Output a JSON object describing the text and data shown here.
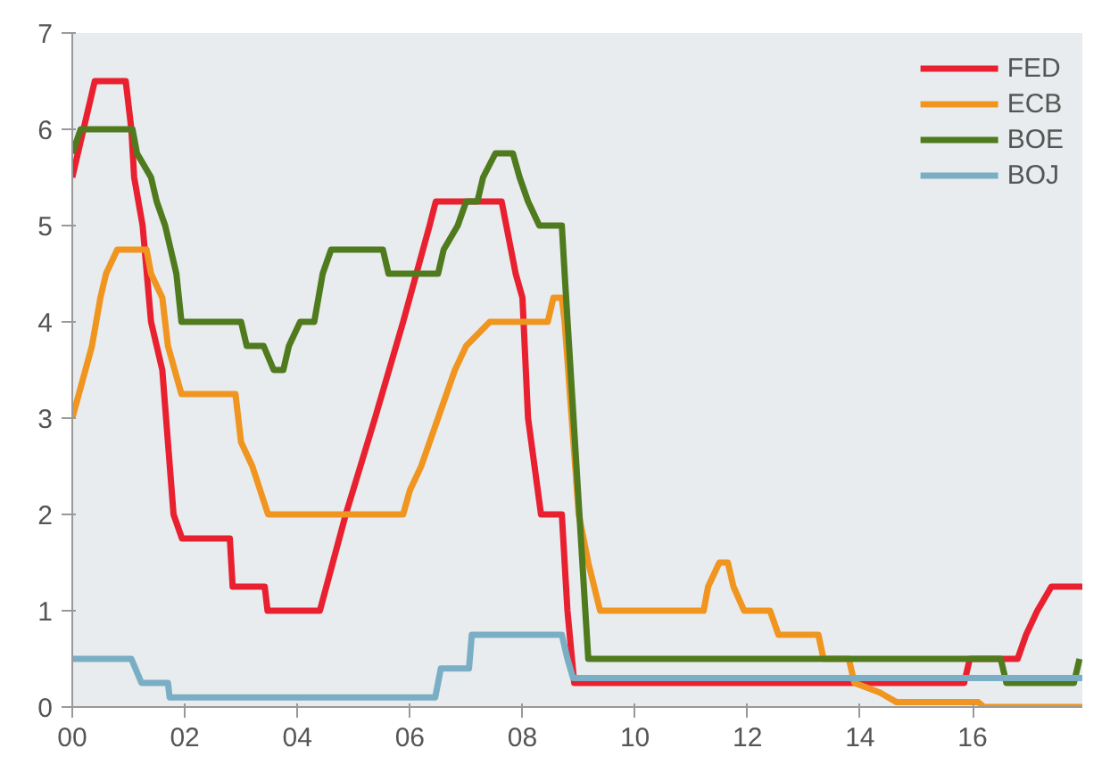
{
  "chart_data": {
    "type": "line",
    "legend": "top right",
    "grid": false,
    "line_style": "solid",
    "marker": "none",
    "xlim": [
      0,
      17.95
    ],
    "ylim": [
      0,
      7
    ],
    "xticks": [
      {
        "value": 0,
        "label": "00"
      },
      {
        "value": 2,
        "label": "02"
      },
      {
        "value": 4,
        "label": "04"
      },
      {
        "value": 6,
        "label": "06"
      },
      {
        "value": 8,
        "label": "08"
      },
      {
        "value": 10,
        "label": "10"
      },
      {
        "value": 12,
        "label": "12"
      },
      {
        "value": 14,
        "label": "14"
      },
      {
        "value": 16,
        "label": "16"
      }
    ],
    "yticks": [
      0,
      1,
      2,
      3,
      4,
      5,
      6,
      7
    ],
    "series": [
      {
        "name": "FED",
        "color": "#e8202f",
        "x": [
          0,
          0.4,
          0.95,
          1.05,
          1.1,
          1.25,
          1.4,
          1.5,
          1.6,
          1.8,
          1.95,
          2.8,
          2.85,
          3.42,
          3.47,
          4.4,
          4.86,
          5.38,
          5.88,
          6.35,
          6.46,
          7.63,
          7.88,
          8.0,
          8.1,
          8.33,
          8.7,
          8.8,
          8.92,
          15.85,
          15.95,
          16.8,
          16.95,
          17.15,
          17.4,
          17.95
        ],
        "values": [
          5.5,
          6.5,
          6.5,
          6.0,
          5.5,
          5.0,
          4.0,
          3.75,
          3.5,
          2.0,
          1.75,
          1.75,
          1.25,
          1.25,
          1.0,
          1.0,
          2.0,
          3.0,
          4.0,
          5.0,
          5.25,
          5.25,
          4.5,
          4.25,
          3.0,
          2.0,
          2.0,
          1.0,
          0.25,
          0.25,
          0.5,
          0.5,
          0.75,
          1.0,
          1.25,
          1.25
        ]
      },
      {
        "name": "ECB",
        "color": "#f0951f",
        "x": [
          0,
          0.35,
          0.5,
          0.6,
          0.8,
          1.32,
          1.4,
          1.6,
          1.7,
          1.94,
          2.9,
          3.0,
          3.2,
          3.48,
          5.88,
          6.0,
          6.2,
          6.35,
          6.5,
          6.65,
          6.8,
          7.0,
          7.42,
          8.45,
          8.55,
          8.7,
          8.75,
          9.0,
          9.17,
          9.38,
          11.22,
          11.3,
          11.5,
          11.65,
          11.75,
          11.94,
          12.4,
          12.55,
          13.26,
          13.35,
          13.8,
          13.9,
          14.35,
          14.65,
          16.1,
          16.2,
          17.95
        ],
        "values": [
          3.0,
          3.75,
          4.25,
          4.5,
          4.75,
          4.75,
          4.5,
          4.25,
          3.75,
          3.25,
          3.25,
          2.75,
          2.5,
          2.0,
          2.0,
          2.25,
          2.5,
          2.75,
          3.0,
          3.25,
          3.5,
          3.75,
          4.0,
          4.0,
          4.25,
          4.25,
          4.0,
          2.0,
          1.5,
          1.0,
          1.0,
          1.25,
          1.5,
          1.5,
          1.25,
          1.0,
          1.0,
          0.75,
          0.75,
          0.5,
          0.5,
          0.25,
          0.15,
          0.05,
          0.05,
          0.0,
          0.0
        ]
      },
      {
        "name": "BOE",
        "color": "#4f7a1e",
        "x": [
          0,
          0.15,
          1.07,
          1.15,
          1.4,
          1.5,
          1.65,
          1.75,
          1.85,
          1.94,
          3.0,
          3.1,
          3.4,
          3.58,
          3.75,
          3.85,
          4.05,
          4.3,
          4.45,
          4.6,
          5.52,
          5.62,
          6.5,
          6.6,
          6.85,
          7.0,
          7.2,
          7.3,
          7.52,
          7.83,
          7.95,
          8.1,
          8.3,
          8.7,
          8.75,
          9.17,
          16.5,
          16.6,
          17.8,
          17.9
        ],
        "values": [
          5.75,
          6.0,
          6.0,
          5.75,
          5.5,
          5.25,
          5.0,
          4.75,
          4.5,
          4.0,
          4.0,
          3.75,
          3.75,
          3.5,
          3.5,
          3.75,
          4.0,
          4.0,
          4.5,
          4.75,
          4.75,
          4.5,
          4.5,
          4.75,
          5.0,
          5.25,
          5.25,
          5.5,
          5.75,
          5.75,
          5.5,
          5.25,
          5.0,
          5.0,
          4.5,
          0.5,
          0.5,
          0.25,
          0.25,
          0.5
        ]
      },
      {
        "name": "BOJ",
        "color": "#7aaec4",
        "x": [
          0,
          1.05,
          1.23,
          1.7,
          1.73,
          6.45,
          6.55,
          7.05,
          7.1,
          8.7,
          8.8,
          8.9,
          17.95
        ],
        "values": [
          0.5,
          0.5,
          0.25,
          0.25,
          0.1,
          0.1,
          0.4,
          0.4,
          0.75,
          0.75,
          0.5,
          0.3,
          0.3
        ]
      }
    ]
  }
}
